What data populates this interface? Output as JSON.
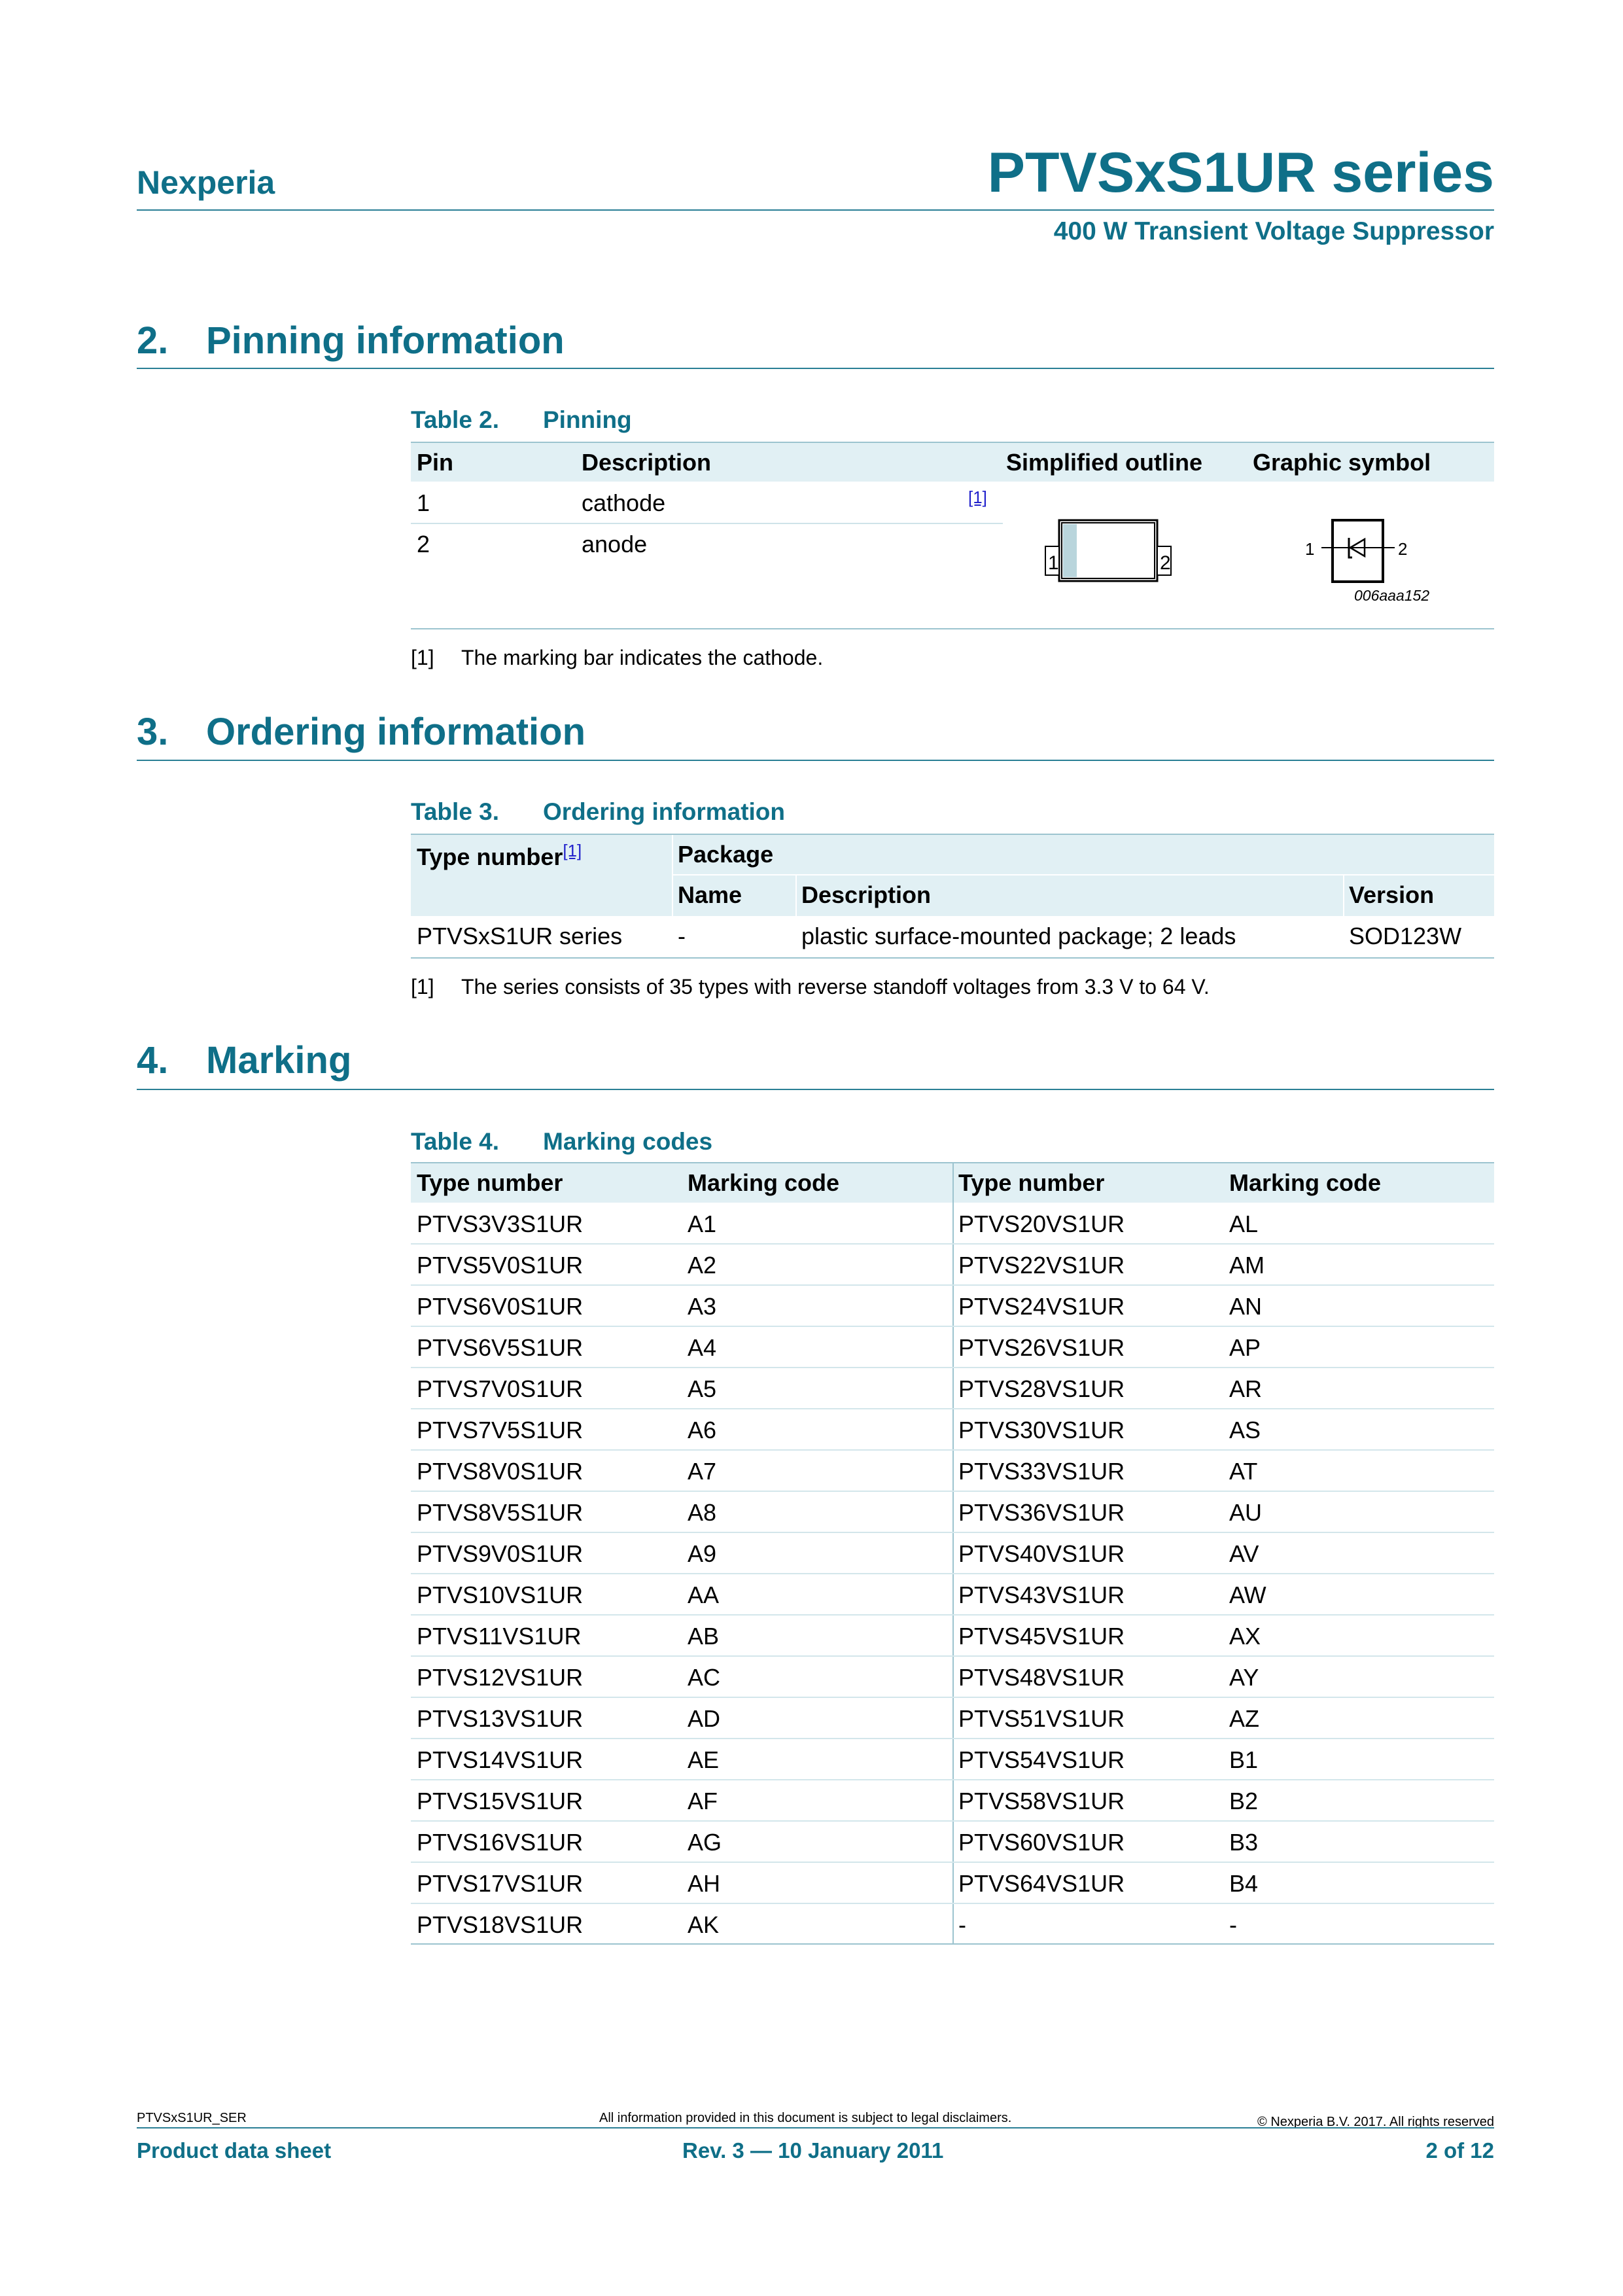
{
  "header": {
    "brand": "Nexperia",
    "title": "PTVSxS1UR series",
    "subtitle": "400 W Transient Voltage Suppressor"
  },
  "sections": [
    {
      "num": "2.",
      "title": "Pinning information"
    },
    {
      "num": "3.",
      "title": "Ordering information"
    },
    {
      "num": "4.",
      "title": "Marking"
    }
  ],
  "table2": {
    "label": "Table 2.",
    "title": "Pinning",
    "headers": [
      "Pin",
      "Description",
      "Simplified outline",
      "Graphic symbol"
    ],
    "rows": [
      {
        "pin": "1",
        "desc": "cathode",
        "ref": "[1]"
      },
      {
        "pin": "2",
        "desc": "anode"
      }
    ],
    "outline_pins": [
      "1",
      "2"
    ],
    "symbol_pins": [
      "1",
      "2"
    ],
    "symbol_code": "006aaa152",
    "footnote_ref": "[1]",
    "footnote": "The marking bar indicates the cathode."
  },
  "table3": {
    "label": "Table 3.",
    "title": "Ordering information",
    "type_header": "Type number",
    "type_ref": "[1]",
    "package_header": "Package",
    "sub_headers": [
      "Name",
      "Description",
      "Version"
    ],
    "row": {
      "type": "PTVSxS1UR series",
      "name": "-",
      "desc": "plastic surface-mounted package; 2 leads",
      "version": "SOD123W"
    },
    "footnote_ref": "[1]",
    "footnote": "The series consists of 35 types with reverse standoff voltages from 3.3 V to 64 V."
  },
  "table4": {
    "label": "Table 4.",
    "title": "Marking codes",
    "headers": [
      "Type number",
      "Marking code",
      "Type number",
      "Marking code"
    ],
    "rows": [
      [
        "PTVS3V3S1UR",
        "A1",
        "PTVS20VS1UR",
        "AL"
      ],
      [
        "PTVS5V0S1UR",
        "A2",
        "PTVS22VS1UR",
        "AM"
      ],
      [
        "PTVS6V0S1UR",
        "A3",
        "PTVS24VS1UR",
        "AN"
      ],
      [
        "PTVS6V5S1UR",
        "A4",
        "PTVS26VS1UR",
        "AP"
      ],
      [
        "PTVS7V0S1UR",
        "A5",
        "PTVS28VS1UR",
        "AR"
      ],
      [
        "PTVS7V5S1UR",
        "A6",
        "PTVS30VS1UR",
        "AS"
      ],
      [
        "PTVS8V0S1UR",
        "A7",
        "PTVS33VS1UR",
        "AT"
      ],
      [
        "PTVS8V5S1UR",
        "A8",
        "PTVS36VS1UR",
        "AU"
      ],
      [
        "PTVS9V0S1UR",
        "A9",
        "PTVS40VS1UR",
        "AV"
      ],
      [
        "PTVS10VS1UR",
        "AA",
        "PTVS43VS1UR",
        "AW"
      ],
      [
        "PTVS11VS1UR",
        "AB",
        "PTVS45VS1UR",
        "AX"
      ],
      [
        "PTVS12VS1UR",
        "AC",
        "PTVS48VS1UR",
        "AY"
      ],
      [
        "PTVS13VS1UR",
        "AD",
        "PTVS51VS1UR",
        "AZ"
      ],
      [
        "PTVS14VS1UR",
        "AE",
        "PTVS54VS1UR",
        "B1"
      ],
      [
        "PTVS15VS1UR",
        "AF",
        "PTVS58VS1UR",
        "B2"
      ],
      [
        "PTVS16VS1UR",
        "AG",
        "PTVS60VS1UR",
        "B3"
      ],
      [
        "PTVS17VS1UR",
        "AH",
        "PTVS64VS1UR",
        "B4"
      ],
      [
        "PTVS18VS1UR",
        "AK",
        "-",
        "-"
      ]
    ]
  },
  "footer": {
    "doc_id": "PTVSxS1UR_SER",
    "disclaimer": "All information provided in this document is subject to legal disclaimers.",
    "copyright": "© Nexperia B.V. 2017. All rights reserved",
    "doc_type": "Product data sheet",
    "revision": "Rev. 3 — 10 January 2011",
    "page": "2 of 12"
  },
  "colors": {
    "accent": "#0f6f88",
    "table_header_bg": "#e1f0f4"
  }
}
